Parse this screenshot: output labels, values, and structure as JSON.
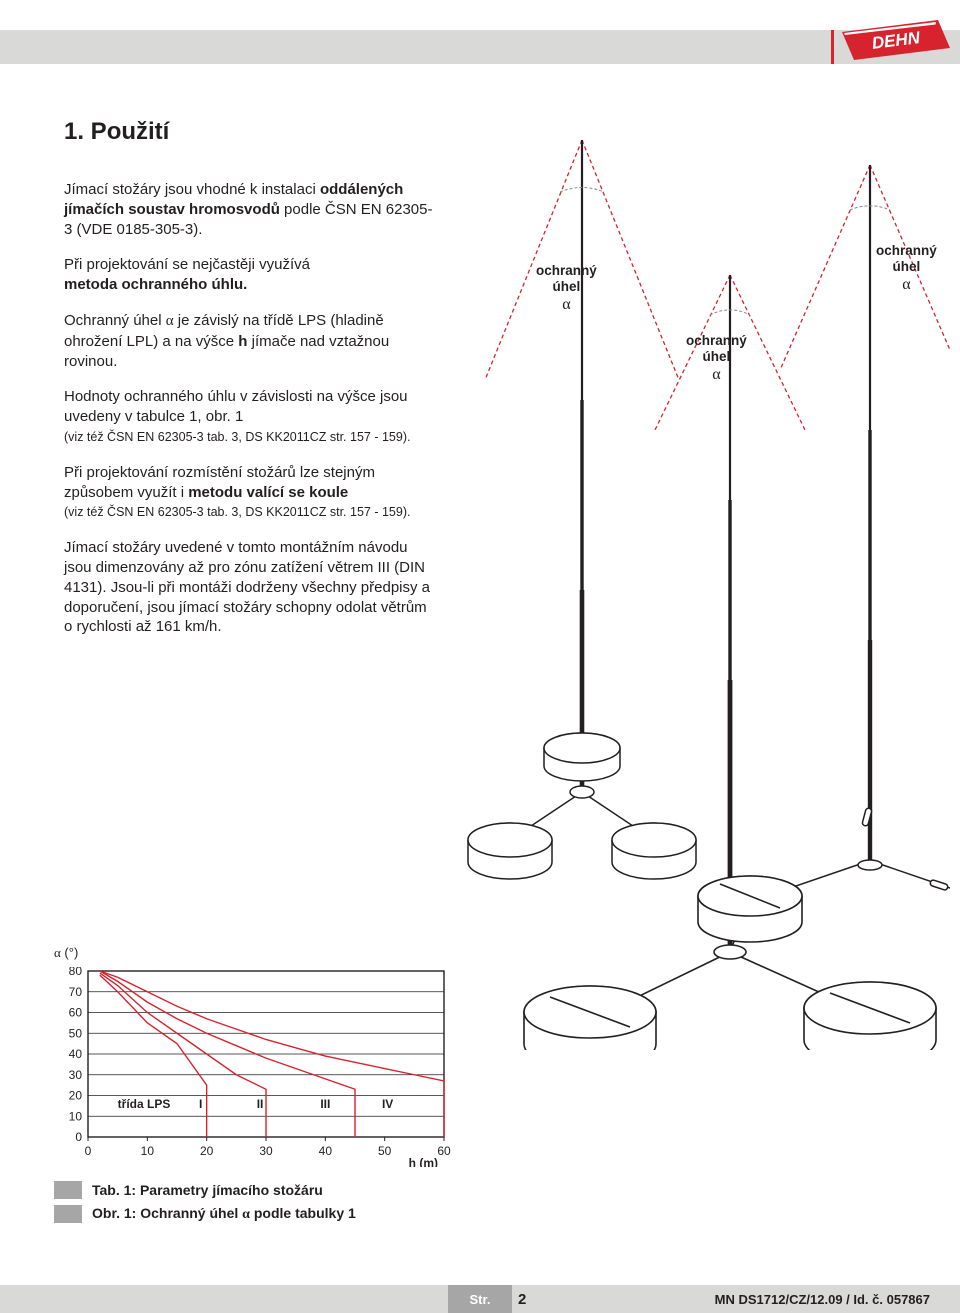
{
  "header": {
    "brand": "DEHN",
    "brand_bg": "#d7232e",
    "brand_fg": "#ffffff"
  },
  "section": {
    "title": "1. Použití",
    "p1a": "Jímací stožáry jsou vhodné k instalaci ",
    "p1b": "oddálených jímačích soustav hromosvodů",
    "p1c": " podle ČSN EN 62305-3 (VDE 0185-305-3).",
    "p2a": "Při projektování se nejčastěji využívá ",
    "p2b": "metoda ochranného úhlu.",
    "p3a": "Ochranný úhel ",
    "p3alpha": "α",
    "p3b": " je závislý na třídě LPS (hladině ohrožení LPL) a na výšce ",
    "p3h": "h",
    "p3c": " jímače nad vztažnou rovinou.",
    "p4a": "Hodnoty ochranného úhlu v závislosti na výšce jsou uvedeny v tabulce 1, obr. 1",
    "p4ref": "(viz též ČSN EN 62305-3 tab. 3, DS KK2011CZ str. 157 - 159).",
    "p5a": "Při projektování rozmístění stožárů lze stejným způsobem využít i ",
    "p5b": "metodu valící se koule",
    "p5ref": "(viz též ČSN EN 62305-3 tab. 3, DS KK2011CZ str. 157 - 159).",
    "p6": "Jímací stožáry uvedené v tomto montážním návodu jsou dimenzovány až pro zónu zatížení větrem III (DIN 4131). Jsou-li při montáži dodrženy všechny předpisy a doporučení, jsou jímací stožáry schopny odolat větrům o rychlosti až 161 km/h."
  },
  "diagram": {
    "label1": "ochranný",
    "label2": "úhel",
    "alpha": "α",
    "pole_color": "#231f20",
    "cone_color": "#d7232e",
    "arc_color": "#888888"
  },
  "chart": {
    "type": "line",
    "ylabel_prefix": "α",
    "ylabel_suffix": " (°)",
    "xlabel": "h (m)",
    "legend_label": "třída LPS",
    "classes": [
      "I",
      "II",
      "III",
      "IV"
    ],
    "x_ticks": [
      0,
      10,
      20,
      30,
      40,
      50,
      60
    ],
    "y_ticks": [
      0,
      10,
      20,
      30,
      40,
      50,
      60,
      70,
      80
    ],
    "xlim": [
      0,
      60
    ],
    "ylim": [
      0,
      80
    ],
    "line_color": "#d7232e",
    "line_width": 1.4,
    "grid_color": "#231f20",
    "background_color": "#ffffff",
    "tick_fontsize": 12,
    "series": {
      "I": [
        [
          2,
          78
        ],
        [
          5,
          70
        ],
        [
          10,
          55
        ],
        [
          15,
          45
        ],
        [
          20,
          25
        ]
      ],
      "II": [
        [
          2,
          79
        ],
        [
          5,
          73
        ],
        [
          10,
          60
        ],
        [
          15,
          50
        ],
        [
          20,
          40
        ],
        [
          25,
          30
        ],
        [
          30,
          23
        ]
      ],
      "III": [
        [
          2,
          80
        ],
        [
          5,
          75
        ],
        [
          10,
          65
        ],
        [
          15,
          57
        ],
        [
          20,
          50
        ],
        [
          25,
          44
        ],
        [
          30,
          38
        ],
        [
          35,
          33
        ],
        [
          40,
          28
        ],
        [
          45,
          23
        ]
      ],
      "IV": [
        [
          2,
          80
        ],
        [
          5,
          77
        ],
        [
          10,
          70
        ],
        [
          15,
          63
        ],
        [
          20,
          57
        ],
        [
          25,
          52
        ],
        [
          30,
          47
        ],
        [
          35,
          43
        ],
        [
          40,
          39
        ],
        [
          45,
          36
        ],
        [
          50,
          33
        ],
        [
          55,
          30
        ],
        [
          60,
          27
        ]
      ]
    }
  },
  "captions": {
    "tab": "Tab. 1:  Parametry jímacího stožáru",
    "obr_a": "Obr. 1: Ochranný úhel ",
    "obr_alpha": "α",
    "obr_b": "  podle tabulky 1"
  },
  "footer": {
    "page_label": "Str.",
    "page_num": "2",
    "doc_id": "MN DS1712/CZ/12.09 / Id. č. 057867"
  },
  "colors": {
    "band": "#d9d9d8",
    "box": "#a7a6a6",
    "text": "#231f20",
    "red": "#d7232e"
  }
}
